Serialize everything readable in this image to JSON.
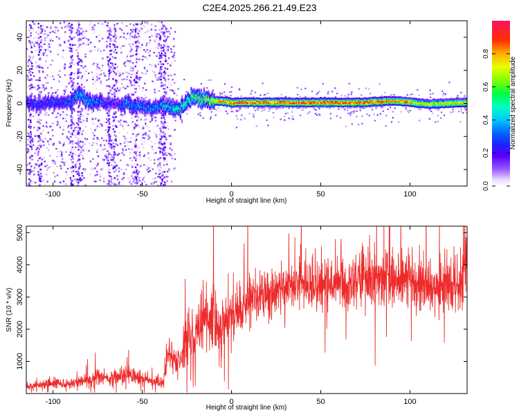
{
  "title": "C2E4.2025.266.21.49.E23",
  "colors": {
    "snr_line": "#ee2b2b",
    "axis": "#000000",
    "background": "#ffffff"
  },
  "chart_data": [
    {
      "type": "heatmap",
      "xlabel": "Height of straight line (km)",
      "ylabel": "Frequency (Hz)",
      "xlim": [
        -115,
        132
      ],
      "ylim": [
        -50,
        50
      ],
      "x_ticks": [
        -100,
        -50,
        0,
        50,
        100
      ],
      "x_tick_labels": [
        "-100",
        "-50",
        "0",
        "50",
        "100"
      ],
      "y_ticks": [
        -40,
        -20,
        0,
        20,
        40
      ],
      "y_tick_labels": [
        "-40",
        "-20",
        "0",
        "20",
        "40"
      ],
      "colorbar": {
        "label": "Normalized spectral amplitude",
        "range": [
          0,
          1
        ],
        "ticks": [
          0.0,
          0.2,
          0.4,
          0.6,
          0.8
        ],
        "tick_labels": [
          "0.0",
          "0.2",
          "0.4",
          "0.6",
          "0.8"
        ],
        "colormap": "rainbow"
      },
      "ridge": {
        "x": [
          -115,
          -90,
          -87,
          -80,
          -65,
          -60,
          -50,
          -45,
          -40,
          -35,
          -30,
          -25,
          -20,
          -10,
          0,
          50,
          75,
          90,
          100,
          110,
          132
        ],
        "center_hz": [
          0,
          1,
          7,
          1,
          0,
          0,
          -2,
          -3,
          -1,
          -1,
          -4,
          3,
          4,
          2,
          1,
          1,
          1,
          2,
          1,
          0,
          1
        ],
        "peak_amplitude": [
          0.3,
          0.35,
          0.5,
          0.45,
          0.2,
          0.45,
          0.4,
          0.4,
          0.45,
          0.5,
          0.55,
          0.6,
          0.7,
          0.85,
          0.95,
          0.98,
          0.95,
          0.9,
          0.85,
          0.75,
          0.8
        ]
      },
      "noise_columns_km": [
        -113,
        -108,
        -90,
        -86,
        -69,
        -66,
        -54,
        -40,
        -38
      ]
    },
    {
      "type": "line",
      "xlabel": "Height of straight line (km)",
      "ylabel": "SNR (10 * v/v)",
      "xlim": [
        -115,
        132
      ],
      "ylim": [
        0,
        5200
      ],
      "x_ticks": [
        -100,
        -50,
        0,
        50,
        100
      ],
      "x_tick_labels": [
        "-100",
        "-50",
        "0",
        "50",
        "100"
      ],
      "y_ticks": [
        1000,
        2000,
        3000,
        4000,
        5000
      ],
      "y_tick_labels": [
        "1000",
        "2000",
        "3000",
        "4000",
        "5000"
      ],
      "series": [
        {
          "x": [
            -115,
            -100,
            -90,
            -80,
            -75,
            -70,
            -60,
            -50,
            -45,
            -38,
            -36,
            -30,
            -25,
            -20,
            -15,
            -10,
            -5,
            0,
            5,
            10,
            20,
            30,
            40,
            50,
            60,
            70,
            80,
            90,
            100,
            110,
            120,
            125,
            132
          ],
          "values": [
            250,
            300,
            320,
            400,
            600,
            450,
            600,
            450,
            400,
            350,
            1300,
            1000,
            1600,
            1800,
            2400,
            2200,
            2000,
            2300,
            2500,
            2900,
            3100,
            3300,
            3300,
            3400,
            3400,
            3500,
            3600,
            3600,
            3500,
            3400,
            3300,
            3200,
            3800
          ]
        }
      ]
    }
  ]
}
